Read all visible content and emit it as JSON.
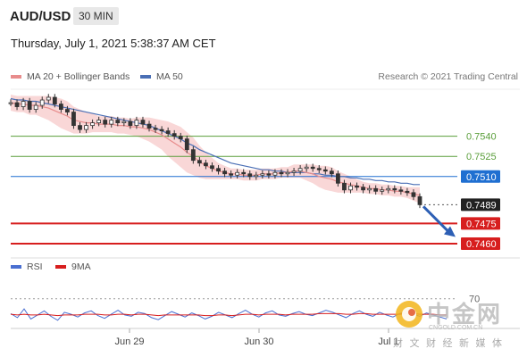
{
  "header": {
    "symbol": "AUD/USD",
    "timeframe": "30 MIN"
  },
  "timestamp": "Thursday, July 1, 2021 5:38:37 AM CET",
  "legend": {
    "ma20": "MA 20 + Bollinger Bands",
    "ma50": "MA 50"
  },
  "credit": "Research © 2021 Trading Central",
  "rsi_legend": {
    "rsi": "RSI",
    "ma": "9MA"
  },
  "rsi_level": "70",
  "watermark": {
    "text": "中金网",
    "sub": "CNGOLD.COM.CN",
    "tagline": "财 文 财 经 新 媒 体"
  },
  "colors": {
    "price": "#333333",
    "bb": "#f4b7b7",
    "ma20": "#e88c8c",
    "ma50": "#4a6fb5",
    "support": "#d71e1e",
    "resistance": "#5a9e3a",
    "pivot": "#1f6fd1",
    "current": "#222222",
    "arrow": "#2d5fb5",
    "rsi": "#4a6fd1",
    "rsi_ma": "#d71e1e"
  },
  "chart_data": {
    "type": "line",
    "x_ticks": [
      "Jun 29",
      "Jun 30",
      "Jul 1"
    ],
    "ylim": [
      0.7452,
      0.7575
    ],
    "price": [
      0.7565,
      0.7562,
      0.7566,
      0.756,
      0.7563,
      0.7567,
      0.7569,
      0.7564,
      0.756,
      0.7558,
      0.7548,
      0.7545,
      0.7548,
      0.755,
      0.7552,
      0.7549,
      0.7552,
      0.755,
      0.7551,
      0.7548,
      0.7552,
      0.7549,
      0.7546,
      0.7545,
      0.7544,
      0.7542,
      0.754,
      0.7538,
      0.753,
      0.7522,
      0.752,
      0.7518,
      0.7516,
      0.7514,
      0.7512,
      0.7511,
      0.7513,
      0.7512,
      0.751,
      0.7511,
      0.7512,
      0.7511,
      0.7513,
      0.7512,
      0.7513,
      0.7514,
      0.7516,
      0.7517,
      0.7516,
      0.7515,
      0.7514,
      0.7512,
      0.7505,
      0.75,
      0.7503,
      0.7502,
      0.75,
      0.7501,
      0.7499,
      0.75,
      0.7501,
      0.75,
      0.7499,
      0.7498,
      0.7495,
      0.7489
    ],
    "ma20": [
      0.7565,
      0.7564,
      0.7564,
      0.7563,
      0.7563,
      0.7562,
      0.7561,
      0.7559,
      0.7557,
      0.7555,
      0.7552,
      0.7551,
      0.755,
      0.755,
      0.7549,
      0.7549,
      0.7549,
      0.7548,
      0.7548,
      0.7547,
      0.7547,
      0.7546,
      0.7545,
      0.7543,
      0.7541,
      0.7538,
      0.7535,
      0.7532,
      0.7528,
      0.7525,
      0.7521,
      0.7518,
      0.7516,
      0.7514,
      0.7513,
      0.7512,
      0.7512,
      0.7511,
      0.7511,
      0.7511,
      0.7512,
      0.7512,
      0.7512,
      0.7513,
      0.7513,
      0.7514,
      0.7514,
      0.7513,
      0.7512,
      0.751,
      0.7509,
      0.7508,
      0.7506,
      0.7505,
      0.7504,
      0.7503,
      0.7502,
      0.7501,
      0.7501,
      0.75,
      0.75,
      0.7499,
      0.7499,
      0.7498,
      0.7497,
      0.7496
    ],
    "bb_width": [
      0.0006,
      0.0006,
      0.0006,
      0.0007,
      0.0007,
      0.0008,
      0.0009,
      0.001,
      0.0011,
      0.0011,
      0.001,
      0.0009,
      0.0008,
      0.0007,
      0.0006,
      0.0006,
      0.0006,
      0.0006,
      0.0006,
      0.0006,
      0.0007,
      0.0008,
      0.0009,
      0.001,
      0.0011,
      0.0013,
      0.0014,
      0.0015,
      0.0015,
      0.0014,
      0.0012,
      0.001,
      0.0008,
      0.0006,
      0.0005,
      0.0004,
      0.0004,
      0.0004,
      0.0004,
      0.0004,
      0.0004,
      0.0004,
      0.0004,
      0.0004,
      0.0004,
      0.0005,
      0.0005,
      0.0006,
      0.0007,
      0.0008,
      0.0009,
      0.0009,
      0.0008,
      0.0007,
      0.0006,
      0.0005,
      0.0004,
      0.0004,
      0.0004,
      0.0004,
      0.0004,
      0.0004,
      0.0004,
      0.0004,
      0.0005,
      0.0006
    ],
    "ma50": [
      0.7568,
      0.7567,
      0.7567,
      0.7566,
      0.7566,
      0.7565,
      0.7564,
      0.7563,
      0.7562,
      0.7561,
      0.756,
      0.7559,
      0.7558,
      0.7557,
      0.7556,
      0.7555,
      0.7554,
      0.7553,
      0.7552,
      0.7551,
      0.755,
      0.7549,
      0.7548,
      0.7546,
      0.7544,
      0.7542,
      0.754,
      0.7538,
      0.7535,
      0.7533,
      0.753,
      0.7528,
      0.7526,
      0.7524,
      0.7522,
      0.752,
      0.7519,
      0.7518,
      0.7517,
      0.7516,
      0.7515,
      0.7515,
      0.7514,
      0.7514,
      0.7513,
      0.7513,
      0.7513,
      0.7513,
      0.7512,
      0.7512,
      0.7511,
      0.7511,
      0.751,
      0.751,
      0.7509,
      0.7509,
      0.7508,
      0.7508,
      0.7507,
      0.7507,
      0.7506,
      0.7506,
      0.7505,
      0.7505,
      0.7504,
      0.7504
    ],
    "levels": [
      {
        "label": "0.7540",
        "value": 0.754,
        "kind": "resistance"
      },
      {
        "label": "0.7525",
        "value": 0.7525,
        "kind": "resistance"
      },
      {
        "label": "0.7510",
        "value": 0.751,
        "kind": "pivot"
      },
      {
        "label": "0.7489",
        "value": 0.7489,
        "kind": "current"
      },
      {
        "label": "0.7475",
        "value": 0.7475,
        "kind": "support"
      },
      {
        "label": "0.7460",
        "value": 0.746,
        "kind": "support"
      }
    ],
    "arrow": {
      "from_index": 65,
      "from_value": 0.7489,
      "to_value": 0.7465
    },
    "rsi": [
      48,
      42,
      55,
      40,
      46,
      52,
      44,
      38,
      50,
      47,
      43,
      49,
      52,
      45,
      41,
      47,
      53,
      46,
      44,
      50,
      48,
      42,
      39,
      45,
      51,
      47,
      43,
      49,
      45,
      40,
      44,
      50,
      46,
      42,
      48,
      53,
      47,
      43,
      49,
      52,
      46,
      44,
      48,
      51,
      47,
      45,
      49,
      53,
      50,
      46,
      42,
      48,
      52,
      47,
      44,
      50,
      46,
      43,
      48,
      51,
      47,
      44,
      49,
      46,
      43,
      40
    ],
    "rsi_ma": [
      47,
      46,
      47,
      46,
      46,
      47,
      46,
      45,
      46,
      46,
      46,
      47,
      47,
      47,
      46,
      46,
      47,
      47,
      46,
      47,
      47,
      46,
      45,
      46,
      46,
      46,
      46,
      46,
      46,
      45,
      45,
      46,
      46,
      45,
      46,
      47,
      47,
      46,
      47,
      47,
      47,
      46,
      47,
      47,
      47,
      47,
      48,
      48,
      48,
      48,
      47,
      47,
      48,
      48,
      47,
      47,
      47,
      47,
      47,
      48,
      48,
      47,
      47,
      47,
      46,
      46
    ]
  }
}
